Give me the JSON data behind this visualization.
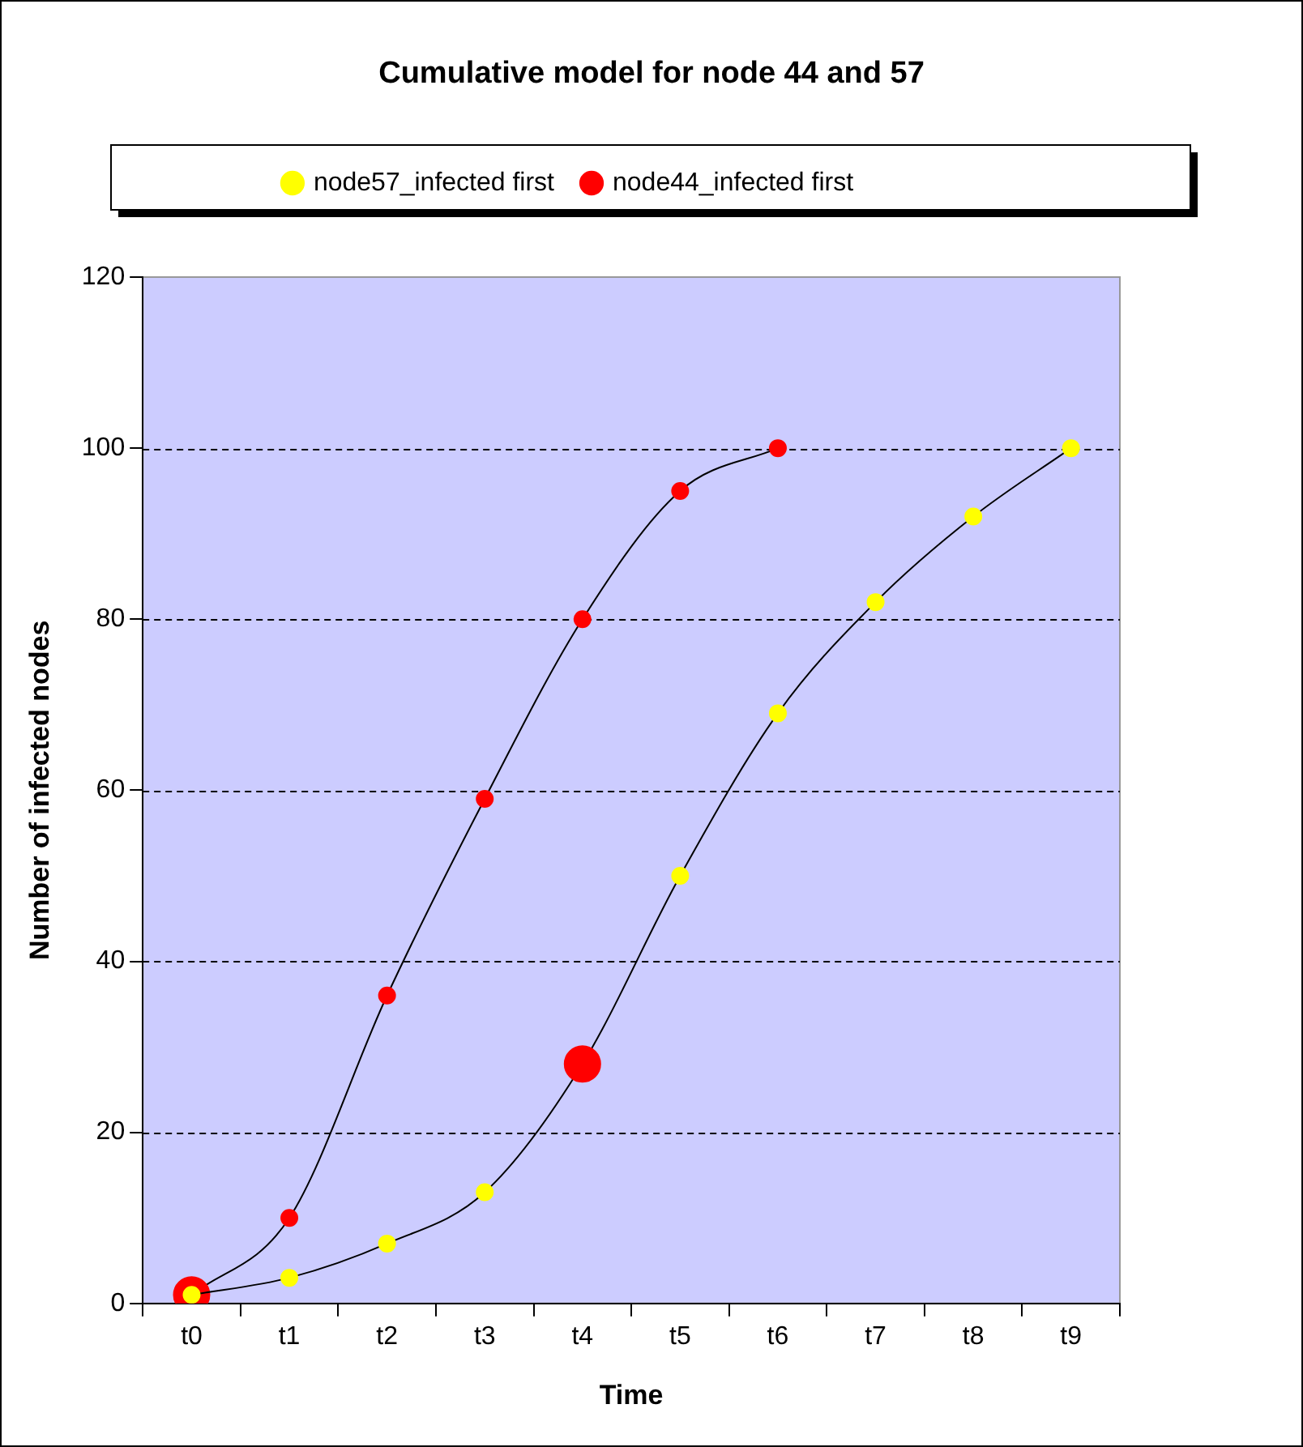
{
  "chart_data": {
    "type": "line",
    "title": "Cumulative model for node 44 and 57",
    "xlabel": "Time",
    "ylabel": "Number of infected nodes",
    "categories": [
      "t0",
      "t1",
      "t2",
      "t3",
      "t4",
      "t5",
      "t6",
      "t7",
      "t8",
      "t9"
    ],
    "series": [
      {
        "name": "node57_infected first",
        "color": "#ffff00",
        "colors": [
          "#ffff00",
          "#ffff00",
          "#ffff00",
          "#ffff00",
          "#ff0000",
          "#ffff00",
          "#ffff00",
          "#ffff00",
          "#ffff00",
          "#ffff00"
        ],
        "values": [
          1,
          3,
          7,
          13,
          28,
          50,
          69,
          82,
          92,
          100
        ]
      },
      {
        "name": "node44_infected first",
        "color": "#ff0000",
        "values": [
          1,
          10,
          36,
          59,
          80,
          95,
          100,
          null,
          null,
          null
        ]
      }
    ],
    "ylim": [
      0,
      120
    ],
    "yticks": [
      0,
      20,
      40,
      60,
      80,
      100,
      120
    ],
    "grid": "y",
    "legend": "top",
    "marker": "circle",
    "line_style": "solid"
  }
}
